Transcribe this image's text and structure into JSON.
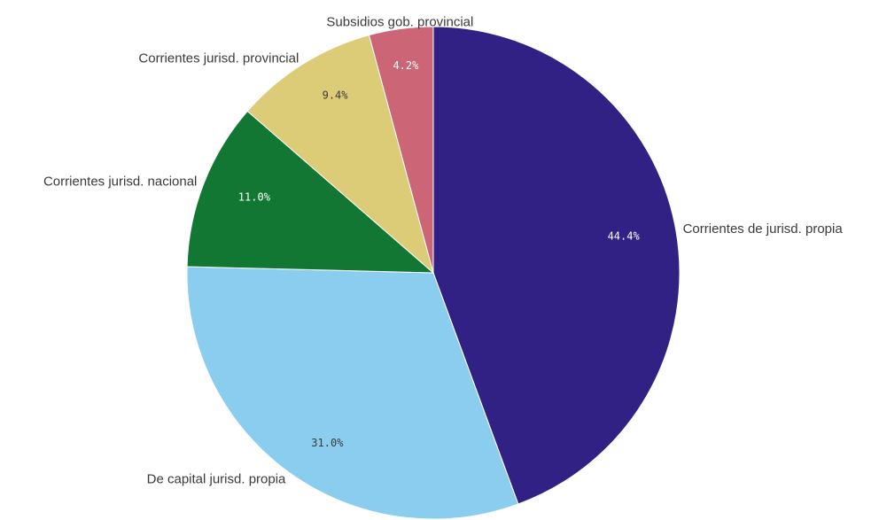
{
  "chart_data": {
    "type": "pie",
    "title": "",
    "slices": [
      {
        "label": "Corrientes de jurisd. propia",
        "value": 44.4,
        "value_label": "44.4%",
        "color": "#322185",
        "text_color": "#ffffff"
      },
      {
        "label": "De capital jurisd. propia",
        "value": 31.0,
        "value_label": "31.0%",
        "color": "#8bcdee",
        "text_color": "#3a3a3a"
      },
      {
        "label": "Corrientes jurisd. nacional",
        "value": 11.0,
        "value_label": "11.0%",
        "color": "#117733",
        "text_color": "#ffffff"
      },
      {
        "label": "Corrientes jurisd. provincial",
        "value": 9.4,
        "value_label": "9.4%",
        "color": "#ddcc77",
        "text_color": "#3a3a3a"
      },
      {
        "label": "Subsidios gob. provincial",
        "value": 4.2,
        "value_label": "4.2%",
        "color": "#cc6677",
        "text_color": "#ffffff"
      }
    ],
    "start": "12 o'clock",
    "direction": "clockwise",
    "legend": "none (labels outside slices)"
  }
}
